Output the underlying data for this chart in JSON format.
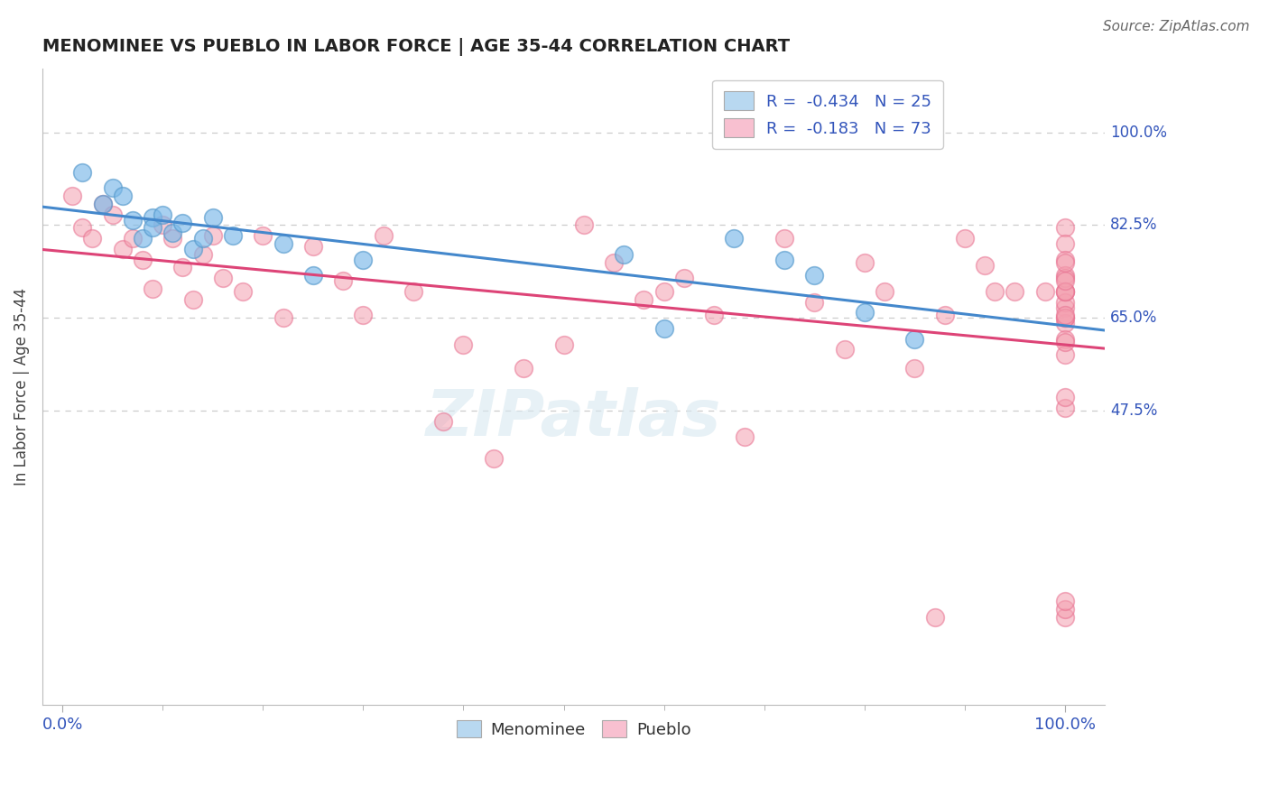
{
  "title": "MENOMINEE VS PUEBLO IN LABOR FORCE | AGE 35-44 CORRELATION CHART",
  "source_text": "Source: ZipAtlas.com",
  "ylabel": "In Labor Force | Age 35-44",
  "menominee_R": "-0.434",
  "menominee_N": "25",
  "pueblo_R": "-0.183",
  "pueblo_N": "73",
  "menominee_color": "#7ab8e8",
  "pueblo_color": "#f4a0b0",
  "menominee_edge": "#5599cc",
  "pueblo_edge": "#e87090",
  "menominee_line_color": "#4488cc",
  "pueblo_line_color": "#dd4477",
  "legend_fill_blue": "#b8d8f0",
  "legend_fill_pink": "#f8c0d0",
  "text_color_blue": "#3355bb",
  "grid_color": "#cccccc",
  "background_color": "#ffffff",
  "ytick_vals": [
    1.0,
    0.825,
    0.65,
    0.475
  ],
  "ytick_labels": [
    "100.0%",
    "82.5%",
    "65.0%",
    "47.5%"
  ],
  "xlim": [
    -0.02,
    1.04
  ],
  "ylim": [
    -0.08,
    1.12
  ],
  "menominee_x": [
    0.02,
    0.04,
    0.05,
    0.06,
    0.07,
    0.08,
    0.09,
    0.09,
    0.1,
    0.11,
    0.12,
    0.13,
    0.14,
    0.15,
    0.17,
    0.22,
    0.25,
    0.3,
    0.56,
    0.6,
    0.67,
    0.72,
    0.75,
    0.8,
    0.85
  ],
  "menominee_y": [
    0.925,
    0.865,
    0.895,
    0.88,
    0.835,
    0.8,
    0.84,
    0.82,
    0.845,
    0.81,
    0.83,
    0.78,
    0.8,
    0.84,
    0.805,
    0.79,
    0.73,
    0.76,
    0.77,
    0.63,
    0.8,
    0.76,
    0.73,
    0.66,
    0.61
  ],
  "pueblo_x": [
    0.01,
    0.02,
    0.03,
    0.04,
    0.05,
    0.06,
    0.07,
    0.08,
    0.09,
    0.1,
    0.11,
    0.12,
    0.13,
    0.14,
    0.15,
    0.16,
    0.18,
    0.2,
    0.22,
    0.25,
    0.28,
    0.3,
    0.32,
    0.35,
    0.38,
    0.4,
    0.43,
    0.46,
    0.5,
    0.52,
    0.55,
    0.58,
    0.6,
    0.62,
    0.65,
    0.68,
    0.72,
    0.75,
    0.78,
    0.8,
    0.82,
    0.85,
    0.87,
    0.88,
    0.9,
    0.92,
    0.93,
    0.95,
    0.98,
    1.0,
    1.0,
    1.0,
    1.0,
    1.0,
    1.0,
    1.0,
    1.0,
    1.0,
    1.0,
    1.0,
    1.0,
    1.0,
    1.0,
    1.0,
    1.0,
    1.0,
    1.0,
    1.0,
    1.0,
    1.0,
    1.0,
    1.0,
    1.0
  ],
  "pueblo_y": [
    0.88,
    0.82,
    0.8,
    0.865,
    0.845,
    0.78,
    0.8,
    0.76,
    0.705,
    0.825,
    0.8,
    0.745,
    0.685,
    0.77,
    0.805,
    0.725,
    0.7,
    0.805,
    0.65,
    0.785,
    0.72,
    0.655,
    0.805,
    0.7,
    0.455,
    0.6,
    0.385,
    0.555,
    0.6,
    0.825,
    0.755,
    0.685,
    0.7,
    0.725,
    0.655,
    0.425,
    0.8,
    0.68,
    0.59,
    0.755,
    0.7,
    0.555,
    0.085,
    0.655,
    0.8,
    0.75,
    0.7,
    0.7,
    0.7,
    0.82,
    0.79,
    0.76,
    0.73,
    0.7,
    0.67,
    0.64,
    0.61,
    0.58,
    0.085,
    0.1,
    0.115,
    0.65,
    0.68,
    0.7,
    0.725,
    0.755,
    0.65,
    0.7,
    0.605,
    0.655,
    0.72,
    0.48,
    0.5
  ]
}
